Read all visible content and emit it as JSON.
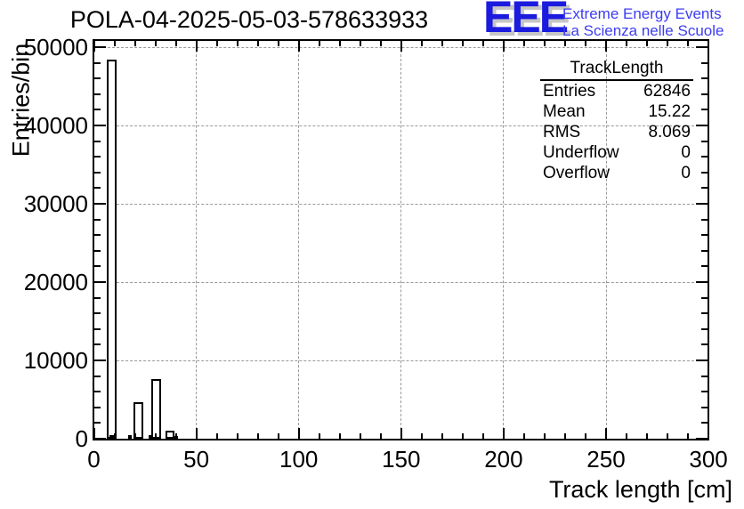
{
  "header": {
    "title": "POLA-04-2025-05-03-578633933"
  },
  "logo": {
    "acronym": "EEE",
    "line1": "Extreme Energy Events",
    "line2": "La Scienza nelle Scuole",
    "acronym_color": "#1b1bdf",
    "subtitle_color": "#3d3df0",
    "shadow_color": "#c6c6c6"
  },
  "stats_box": {
    "title": "TrackLength",
    "rows": [
      {
        "label": "Entries",
        "value": "62846"
      },
      {
        "label": "Mean",
        "value": "15.22"
      },
      {
        "label": "RMS",
        "value": "8.069"
      },
      {
        "label": "Underflow",
        "value": "0"
      },
      {
        "label": "Overflow",
        "value": "0"
      }
    ]
  },
  "chart_data": {
    "type": "bar",
    "title": "POLA-04-2025-05-03-578633933",
    "xlabel": "Track length [cm]",
    "ylabel": "Entries/bin",
    "xlim": [
      0,
      300
    ],
    "ylim": [
      0,
      51000
    ],
    "x_major_ticks": [
      0,
      50,
      100,
      150,
      200,
      250,
      300
    ],
    "x_minor_step": 10,
    "y_major_ticks": [
      0,
      10000,
      20000,
      30000,
      40000,
      50000
    ],
    "y_minor_step": 2000,
    "grid": true,
    "grid_style": "dashed",
    "legend_position": "none",
    "bars": [
      {
        "x1": 6.5,
        "x2": 10.9,
        "value": 48400,
        "fill": "white"
      },
      {
        "x1": 19.4,
        "x2": 24.2,
        "value": 4700,
        "fill": "white"
      },
      {
        "x1": 28.1,
        "x2": 32.9,
        "value": 7600,
        "fill": "white"
      },
      {
        "x1": 35.1,
        "x2": 39.4,
        "value": 1000,
        "fill": "white"
      },
      {
        "x1": 7.7,
        "x2": 9.9,
        "value": 500,
        "fill": "black"
      },
      {
        "x1": 16.9,
        "x2": 18.5,
        "value": 400,
        "fill": "black"
      },
      {
        "x1": 26.8,
        "x2": 28.6,
        "value": 450,
        "fill": "black"
      },
      {
        "x1": 39.4,
        "x2": 40.9,
        "value": 300,
        "fill": "black"
      }
    ]
  }
}
